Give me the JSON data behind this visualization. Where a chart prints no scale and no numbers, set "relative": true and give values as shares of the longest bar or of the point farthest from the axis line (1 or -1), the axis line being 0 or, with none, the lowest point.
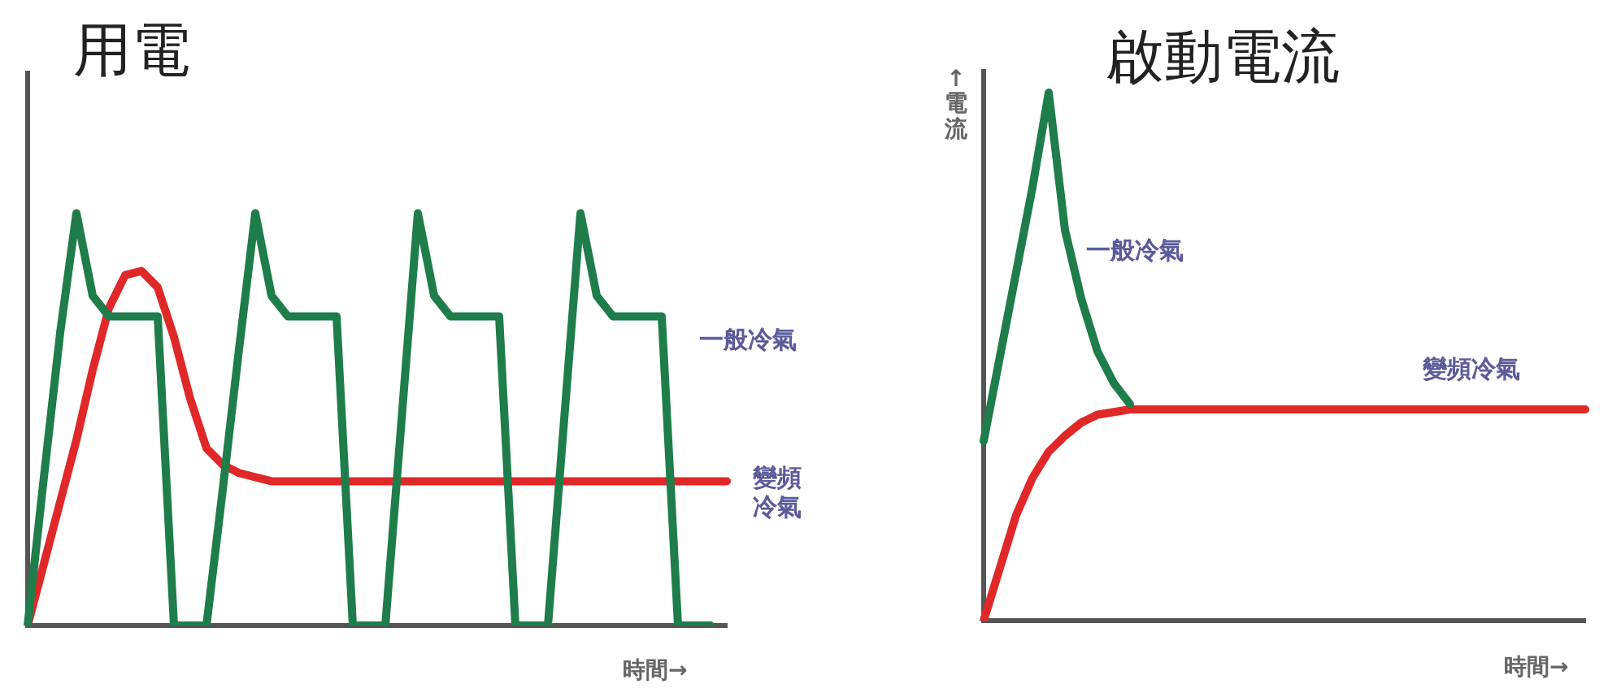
{
  "chart_data": [
    {
      "type": "line",
      "title": "用電",
      "xlabel": "時間→",
      "relative": true,
      "marker": "none",
      "categories": [
        null,
        null,
        null,
        null,
        null,
        null,
        null,
        null,
        null,
        null,
        null,
        null,
        null,
        null,
        null,
        null,
        null,
        null,
        null,
        null,
        null,
        null,
        null,
        null,
        null,
        null,
        null,
        null,
        null,
        null,
        null,
        null,
        null,
        null,
        null,
        null,
        null,
        null,
        null,
        null,
        null,
        null,
        null,
        null
      ],
      "series": [
        {
          "name": "一般冷氣",
          "color": "#1e7d4a",
          "values": [
            0,
            0.36,
            0.71,
            1,
            0.8,
            0.75,
            0.75,
            0.75,
            0.75,
            0,
            0,
            0,
            0.33,
            0.67,
            1,
            0.8,
            0.75,
            0.75,
            0.75,
            0.75,
            0,
            0,
            0,
            0.5,
            1,
            0.8,
            0.75,
            0.75,
            0.75,
            0.75,
            0,
            0,
            0,
            0.5,
            1,
            0.8,
            0.75,
            0.75,
            0.75,
            0.75,
            0,
            0,
            0,
            null
          ]
        },
        {
          "name": "變頻冷氣",
          "color": "#e02828",
          "values": [
            0,
            0.15,
            0.3,
            0.45,
            0.62,
            0.77,
            0.85,
            0.86,
            0.82,
            0.7,
            0.55,
            0.43,
            0.39,
            0.37,
            0.36,
            0.35,
            0.35,
            0.35,
            0.35,
            0.35,
            0.35,
            0.35,
            0.35,
            0.35,
            0.35,
            0.35,
            0.35,
            0.35,
            0.35,
            0.35,
            0.35,
            0.35,
            0.35,
            0.35,
            0.35,
            0.35,
            0.35,
            0.35,
            0.35,
            0.35,
            0.35,
            0.35,
            0.35,
            0.35
          ]
        }
      ]
    },
    {
      "type": "line",
      "title": "啟動電流",
      "xlabel": "時間→",
      "ylabel": "↑電流",
      "relative": true,
      "marker": "none",
      "categories": [
        null,
        null,
        null,
        null,
        null,
        null,
        null,
        null,
        null,
        null,
        null,
        null,
        null,
        null,
        null,
        null,
        null,
        null,
        null,
        null,
        null,
        null,
        null,
        null,
        null,
        null,
        null,
        null,
        null,
        null,
        null,
        null,
        null,
        null,
        null,
        null,
        null,
        null
      ],
      "series": [
        {
          "name": "一般冷氣",
          "color": "#1e7d4a",
          "values": [
            0.34,
            0.5,
            0.66,
            0.82,
            1,
            0.74,
            0.61,
            0.51,
            0.45,
            0.41,
            null,
            null,
            null,
            null,
            null,
            null,
            null,
            null,
            null,
            null,
            null,
            null,
            null,
            null,
            null,
            null,
            null,
            null,
            null,
            null,
            null,
            null,
            null,
            null,
            null,
            null,
            null,
            null
          ]
        },
        {
          "name": "變頻冷氣",
          "color": "#e02828",
          "values": [
            0,
            0.1,
            0.2,
            0.27,
            0.32,
            0.35,
            0.375,
            0.39,
            0.395,
            0.4,
            0.4,
            0.4,
            0.4,
            0.4,
            0.4,
            0.4,
            0.4,
            0.4,
            0.4,
            0.4,
            0.4,
            0.4,
            0.4,
            0.4,
            0.4,
            0.4,
            0.4,
            0.4,
            0.4,
            0.4,
            0.4,
            0.4,
            0.4,
            0.4,
            0.4,
            0.4,
            0.4,
            0.4
          ]
        }
      ]
    }
  ]
}
